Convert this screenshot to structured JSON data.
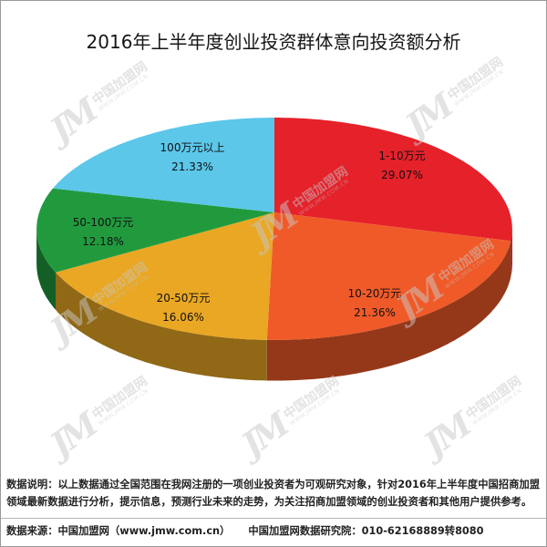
{
  "chart_data": {
    "type": "pie",
    "three_d": true,
    "title": "2016年上半年度创业投资群体意向投资额分析",
    "categories": [
      "1-10万元",
      "10-20万元",
      "20-50万元",
      "50-100万元",
      "100万元以上"
    ],
    "values": [
      29.07,
      21.36,
      16.06,
      12.18,
      21.33
    ],
    "data_labels": [
      "29.07%",
      "21.36%",
      "16.06%",
      "12.18%",
      "21.33%"
    ],
    "colors": [
      "#E5212A",
      "#F05A28",
      "#E9A724",
      "#219A3E",
      "#5CC7E9"
    ]
  },
  "footer": {
    "note": "数据说明：以上数据通过全国范围在我网注册的一项创业投资者为可观研究对象，针对2016年上半年度中国招商加盟领域最新数据进行分析，提示信息，预测行业未来的走势，为关注招商加盟领域的创业投资者和其他用户提供参考。",
    "source": "数据来源：中国加盟网（www.jmw.com.cn）",
    "institute": "中国加盟网数据研究院：010-62168889转8080"
  },
  "watermark": {
    "logo": "JM",
    "name": "中国加盟网",
    "url": "WWW.JMW.COM.CN"
  }
}
